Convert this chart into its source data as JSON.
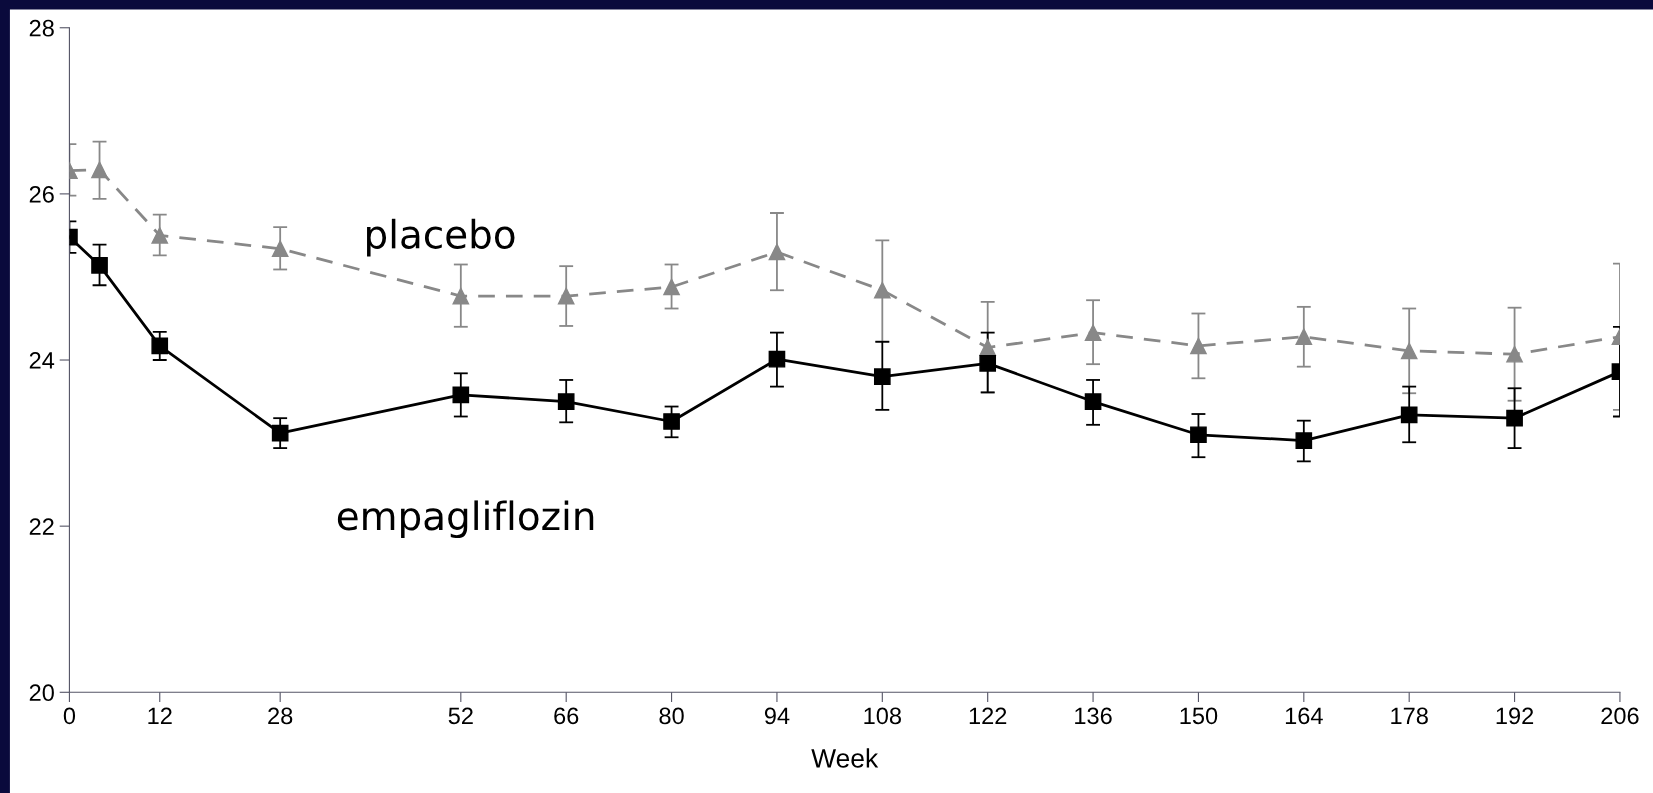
{
  "chart_data": {
    "type": "line",
    "xlabel": "Week",
    "x": [
      0,
      4,
      12,
      28,
      52,
      66,
      80,
      94,
      108,
      122,
      136,
      150,
      164,
      178,
      192,
      206
    ],
    "xlim": [
      0,
      206
    ],
    "xticks": [
      0,
      12,
      28,
      52,
      66,
      80,
      94,
      108,
      122,
      136,
      150,
      164,
      178,
      192,
      206
    ],
    "ylim": [
      20,
      28
    ],
    "yticks": [
      20,
      22,
      24,
      26,
      28
    ],
    "grid": false,
    "legend": false,
    "series": [
      {
        "name": "placebo",
        "color": "#888888",
        "marker": "triangle",
        "line_style": "dashed",
        "values": [
          26.28,
          26.29,
          25.5,
          25.34,
          24.77,
          24.77,
          24.88,
          25.3,
          24.84,
          24.15,
          24.33,
          24.17,
          24.28,
          24.11,
          24.07,
          24.28
        ],
        "errors": [
          [
            25.98,
            26.6
          ],
          [
            25.94,
            26.63
          ],
          [
            25.26,
            25.75
          ],
          [
            25.09,
            25.6
          ],
          [
            24.4,
            25.15
          ],
          [
            24.41,
            25.13
          ],
          [
            24.62,
            25.15
          ],
          [
            24.84,
            25.77
          ],
          [
            24.22,
            25.44
          ],
          [
            23.61,
            24.7
          ],
          [
            23.95,
            24.72
          ],
          [
            23.78,
            24.56
          ],
          [
            23.92,
            24.64
          ],
          [
            23.6,
            24.62
          ],
          [
            23.51,
            24.63
          ],
          [
            23.4,
            25.16
          ]
        ]
      },
      {
        "name": "empagliflozin",
        "color": "#000000",
        "marker": "square",
        "line_style": "solid",
        "values": [
          25.48,
          25.14,
          24.17,
          23.12,
          23.58,
          23.5,
          23.26,
          24.01,
          23.8,
          23.96,
          23.5,
          23.1,
          23.03,
          23.34,
          23.3,
          23.86
        ],
        "errors": [
          [
            25.29,
            25.67
          ],
          [
            24.9,
            25.39
          ],
          [
            24.0,
            24.34
          ],
          [
            22.94,
            23.3
          ],
          [
            23.32,
            23.84
          ],
          [
            23.25,
            23.76
          ],
          [
            23.07,
            23.44
          ],
          [
            23.68,
            24.33
          ],
          [
            23.4,
            24.22
          ],
          [
            23.61,
            24.33
          ],
          [
            23.22,
            23.76
          ],
          [
            22.83,
            23.35
          ],
          [
            22.78,
            23.27
          ],
          [
            23.01,
            23.68
          ],
          [
            22.94,
            23.66
          ],
          [
            23.32,
            24.4
          ]
        ]
      }
    ]
  }
}
